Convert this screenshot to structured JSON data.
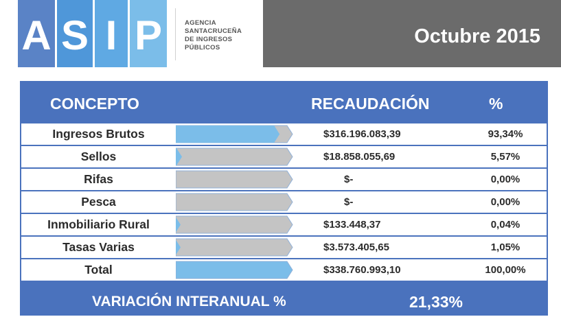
{
  "logo": {
    "letters": [
      "A",
      "S",
      "I",
      "P"
    ],
    "agency_lines": [
      "AGENCIA",
      "SANTACRUCEÑA",
      "DE INGRESOS",
      "PÚBLICOS"
    ]
  },
  "period": "Octubre 2015",
  "table": {
    "headers": {
      "concepto": "CONCEPTO",
      "recaudacion": "RECAUDACIÓN",
      "porcentaje": "%"
    },
    "rows": [
      {
        "concepto": "Ingresos Brutos",
        "recaudacion": "$316.196.083,39",
        "porcentaje": "93,34%",
        "share": 93.34
      },
      {
        "concepto": "Sellos",
        "recaudacion": "$18.858.055,69",
        "porcentaje": "5,57%",
        "share": 5.57
      },
      {
        "concepto": "Rifas",
        "recaudacion": "$-",
        "porcentaje": "0,00%",
        "share": 0.0
      },
      {
        "concepto": "Pesca",
        "recaudacion": "$-",
        "porcentaje": "0,00%",
        "share": 0.0
      },
      {
        "concepto": "Inmobiliario Rural",
        "recaudacion": "$133.448,37",
        "porcentaje": "0,04%",
        "share": 0.04
      },
      {
        "concepto": "Tasas Varias",
        "recaudacion": "$3.573.405,65",
        "porcentaje": "1,05%",
        "share": 1.05
      },
      {
        "concepto": "Total",
        "recaudacion": "$338.760.993,10",
        "porcentaje": "100,00%",
        "share": 100.0
      }
    ],
    "footer": {
      "label": "VARIACIÓN INTERANUAL %",
      "value": "21,33%"
    }
  },
  "colors": {
    "panel_blue": "#4a72bd",
    "bar_fill_blue": "#7bbde9",
    "bar_empty_grey": "#c4c4c4",
    "header_grey": "#6b6b6b"
  }
}
